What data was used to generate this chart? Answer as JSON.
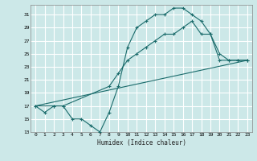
{
  "xlabel": "Humidex (Indice chaleur)",
  "bg_color": "#cce8e8",
  "line_color": "#1a6b6b",
  "grid_color": "#ffffff",
  "xlim": [
    -0.5,
    23.5
  ],
  "ylim": [
    13,
    32.5
  ],
  "yticks": [
    13,
    15,
    17,
    19,
    21,
    23,
    25,
    27,
    29,
    31
  ],
  "xticks": [
    0,
    1,
    2,
    3,
    4,
    5,
    6,
    7,
    8,
    9,
    10,
    11,
    12,
    13,
    14,
    15,
    16,
    17,
    18,
    19,
    20,
    21,
    22,
    23
  ],
  "line1_x": [
    0,
    1,
    2,
    3,
    4,
    5,
    6,
    7,
    8,
    9,
    10,
    11,
    12,
    13,
    14,
    15,
    16,
    17,
    18,
    19,
    20,
    21,
    22,
    23
  ],
  "line1_y": [
    17,
    16,
    17,
    17,
    15,
    15,
    14,
    13,
    16,
    20,
    26,
    29,
    30,
    31,
    31,
    32,
    32,
    31,
    30,
    28,
    24,
    24,
    24,
    24
  ],
  "line2_x": [
    0,
    2,
    3,
    8,
    9,
    10,
    11,
    12,
    13,
    14,
    15,
    16,
    17,
    18,
    19,
    20,
    21,
    22,
    23
  ],
  "line2_y": [
    17,
    17,
    17,
    20,
    22,
    24,
    25,
    26,
    27,
    28,
    28,
    29,
    30,
    28,
    28,
    25,
    24,
    24,
    24
  ],
  "line3_x": [
    0,
    23
  ],
  "line3_y": [
    17,
    24
  ]
}
